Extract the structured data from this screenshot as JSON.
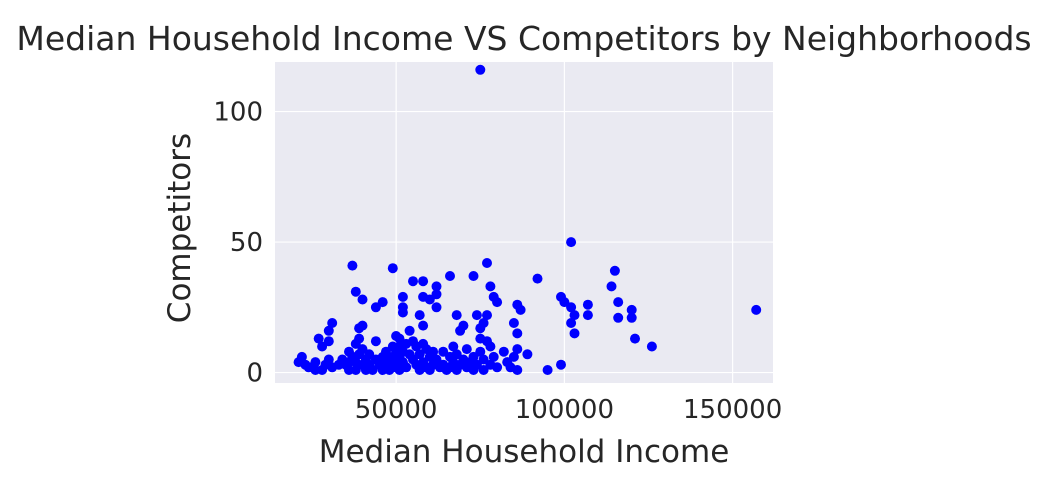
{
  "chart_data": {
    "type": "scatter",
    "title": "Median Household Income VS Competitors by Neighborhoods",
    "xlabel": "Median Household Income",
    "ylabel": "Competitors",
    "xlim": [
      14000,
      162000
    ],
    "ylim": [
      -4,
      119
    ],
    "xticks": [
      50000,
      100000,
      150000
    ],
    "xtick_labels": [
      "50000",
      "100000",
      "150000"
    ],
    "yticks": [
      0,
      50,
      100
    ],
    "ytick_labels": [
      "0",
      "50",
      "100"
    ],
    "grid": true,
    "background": "#eaeaf2",
    "grid_color": "#ffffff",
    "point_color": "#0000ff",
    "text_color": "#262626",
    "points": [
      [
        75000,
        116
      ],
      [
        102000,
        50
      ],
      [
        37000,
        41
      ],
      [
        49000,
        40
      ],
      [
        77000,
        42
      ],
      [
        92000,
        36
      ],
      [
        115000,
        39
      ],
      [
        114000,
        33
      ],
      [
        73000,
        37
      ],
      [
        66000,
        37
      ],
      [
        38000,
        31
      ],
      [
        40000,
        28
      ],
      [
        55000,
        35
      ],
      [
        58000,
        35
      ],
      [
        62000,
        33
      ],
      [
        62000,
        30
      ],
      [
        58000,
        29
      ],
      [
        52000,
        29
      ],
      [
        52000,
        25
      ],
      [
        46000,
        27
      ],
      [
        44000,
        25
      ],
      [
        60000,
        28
      ],
      [
        62000,
        25
      ],
      [
        57000,
        22
      ],
      [
        52000,
        23
      ],
      [
        78000,
        33
      ],
      [
        79000,
        29
      ],
      [
        80000,
        27
      ],
      [
        77000,
        22
      ],
      [
        76000,
        19
      ],
      [
        74000,
        22
      ],
      [
        75000,
        17
      ],
      [
        68000,
        22
      ],
      [
        70000,
        18
      ],
      [
        69000,
        16
      ],
      [
        86000,
        26
      ],
      [
        87000,
        24
      ],
      [
        85000,
        19
      ],
      [
        86000,
        15
      ],
      [
        99000,
        29
      ],
      [
        100000,
        27
      ],
      [
        102000,
        25
      ],
      [
        103000,
        22
      ],
      [
        102000,
        19
      ],
      [
        103000,
        15
      ],
      [
        107000,
        26
      ],
      [
        107000,
        22
      ],
      [
        116000,
        27
      ],
      [
        116000,
        21
      ],
      [
        120000,
        24
      ],
      [
        120000,
        21
      ],
      [
        121000,
        13
      ],
      [
        126000,
        10
      ],
      [
        157000,
        24
      ],
      [
        30000,
        16
      ],
      [
        31000,
        19
      ],
      [
        30000,
        12
      ],
      [
        28000,
        10
      ],
      [
        27000,
        13
      ],
      [
        22000,
        6
      ],
      [
        21000,
        4
      ],
      [
        23000,
        3
      ],
      [
        24000,
        2
      ],
      [
        26000,
        4
      ],
      [
        26000,
        1
      ],
      [
        28000,
        1
      ],
      [
        29000,
        3
      ],
      [
        30000,
        5
      ],
      [
        31000,
        2
      ],
      [
        33000,
        3
      ],
      [
        34000,
        5
      ],
      [
        35000,
        3
      ],
      [
        36000,
        8
      ],
      [
        36000,
        4
      ],
      [
        36000,
        1
      ],
      [
        37000,
        6
      ],
      [
        38000,
        11
      ],
      [
        38000,
        4
      ],
      [
        38000,
        1
      ],
      [
        39000,
        17
      ],
      [
        39000,
        13
      ],
      [
        39000,
        7
      ],
      [
        40000,
        18
      ],
      [
        40000,
        9
      ],
      [
        40000,
        3
      ],
      [
        41000,
        5
      ],
      [
        41000,
        1
      ],
      [
        42000,
        7
      ],
      [
        42000,
        3
      ],
      [
        43000,
        1
      ],
      [
        44000,
        12
      ],
      [
        44000,
        5
      ],
      [
        45000,
        3
      ],
      [
        46000,
        6
      ],
      [
        46000,
        1
      ],
      [
        47000,
        8
      ],
      [
        47000,
        3
      ],
      [
        48000,
        5
      ],
      [
        48000,
        1
      ],
      [
        49000,
        10
      ],
      [
        49000,
        6
      ],
      [
        49000,
        2
      ],
      [
        50000,
        14
      ],
      [
        50000,
        8
      ],
      [
        50000,
        4
      ],
      [
        51000,
        13
      ],
      [
        51000,
        10
      ],
      [
        51000,
        6
      ],
      [
        51000,
        1
      ],
      [
        52000,
        8
      ],
      [
        52000,
        4
      ],
      [
        53000,
        11
      ],
      [
        53000,
        2
      ],
      [
        54000,
        16
      ],
      [
        54000,
        7
      ],
      [
        55000,
        12
      ],
      [
        55000,
        5
      ],
      [
        56000,
        10
      ],
      [
        56000,
        3
      ],
      [
        57000,
        7
      ],
      [
        57000,
        1
      ],
      [
        58000,
        18
      ],
      [
        58000,
        11
      ],
      [
        58000,
        4
      ],
      [
        59000,
        9
      ],
      [
        59000,
        2
      ],
      [
        60000,
        6
      ],
      [
        60000,
        1
      ],
      [
        61000,
        8
      ],
      [
        61000,
        3
      ],
      [
        62000,
        5
      ],
      [
        63000,
        2
      ],
      [
        64000,
        8
      ],
      [
        64000,
        3
      ],
      [
        65000,
        1
      ],
      [
        66000,
        6
      ],
      [
        66000,
        2
      ],
      [
        67000,
        10
      ],
      [
        67000,
        4
      ],
      [
        68000,
        7
      ],
      [
        68000,
        1
      ],
      [
        69000,
        3
      ],
      [
        70000,
        5
      ],
      [
        71000,
        9
      ],
      [
        71000,
        2
      ],
      [
        72000,
        4
      ],
      [
        73000,
        6
      ],
      [
        73000,
        1
      ],
      [
        74000,
        3
      ],
      [
        75000,
        13
      ],
      [
        75000,
        8
      ],
      [
        76000,
        5
      ],
      [
        76000,
        1
      ],
      [
        77000,
        12
      ],
      [
        78000,
        10
      ],
      [
        78000,
        3
      ],
      [
        79000,
        6
      ],
      [
        80000,
        2
      ],
      [
        82000,
        8
      ],
      [
        83000,
        4
      ],
      [
        84000,
        2
      ],
      [
        85000,
        6
      ],
      [
        86000,
        9
      ],
      [
        86000,
        1
      ],
      [
        89000,
        7
      ],
      [
        95000,
        1
      ],
      [
        99000,
        3
      ]
    ]
  }
}
